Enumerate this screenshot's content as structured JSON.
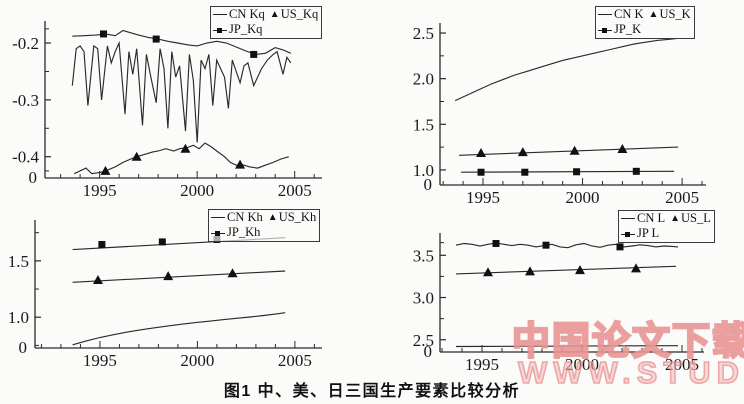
{
  "caption": "图1 中、美、日三国生产要素比较分析",
  "watermark": {
    "line1": "中国论文下载",
    "line2": "WWW.STUDA.",
    "color": "#e79090"
  },
  "colors": {
    "line": "#2a2a2a",
    "marker": "#111111",
    "text": "#1a1a1a"
  },
  "chart_data": [
    {
      "type": "line",
      "name": "Kq",
      "legend": [
        {
          "label": "CN Kq",
          "marker": "line"
        },
        {
          "label": "US_Kq",
          "marker": "triangle"
        },
        {
          "label": "JP_Kq",
          "marker": "square-line"
        }
      ],
      "legend_position": "top-right",
      "xticks": [
        {
          "v": 1995,
          "label": "1995"
        },
        {
          "v": 2000,
          "label": "2000"
        },
        {
          "v": 2005,
          "label": "2005"
        }
      ],
      "yticks": [
        {
          "v": -0.2,
          "label": "-0.2"
        },
        {
          "v": -0.3,
          "label": "-0.3"
        },
        {
          "v": -0.4,
          "label": "-0.4"
        }
      ],
      "yminor": [
        -0.175,
        -0.25,
        -0.35,
        -0.425
      ],
      "origin_label": "0",
      "xlim": [
        1992.2,
        2006.4
      ],
      "ylim": [
        -0.4375,
        -0.17
      ],
      "series": [
        {
          "name": "CN_Kq",
          "marker": null,
          "x": [
            1993.6,
            1993.8,
            1994.0,
            1994.2,
            1994.4,
            1994.7,
            1994.9,
            1995.1,
            1995.4,
            1995.6,
            1995.8,
            1996.0,
            1996.3,
            1996.5,
            1996.7,
            1996.9,
            1997.2,
            1997.4,
            1997.6,
            1997.9,
            1998.1,
            1998.3,
            1998.5,
            1998.7,
            1998.9,
            1999.1,
            1999.4,
            1999.6,
            1999.8,
            2000.0,
            2000.2,
            2000.4,
            2000.6,
            2000.8,
            2001.0,
            2001.2,
            2001.4,
            2001.6,
            2001.8,
            2002.0,
            2002.2,
            2002.4,
            2002.6,
            2002.9,
            2003.3,
            2003.6,
            2003.9,
            2004.1,
            2004.4,
            2004.6,
            2004.8
          ],
          "y": [
            -0.275,
            -0.21,
            -0.205,
            -0.215,
            -0.31,
            -0.205,
            -0.21,
            -0.3,
            -0.205,
            -0.235,
            -0.215,
            -0.2,
            -0.325,
            -0.215,
            -0.255,
            -0.21,
            -0.345,
            -0.22,
            -0.255,
            -0.305,
            -0.21,
            -0.245,
            -0.35,
            -0.215,
            -0.26,
            -0.24,
            -0.355,
            -0.22,
            -0.265,
            -0.375,
            -0.23,
            -0.245,
            -0.22,
            -0.31,
            -0.23,
            -0.245,
            -0.26,
            -0.315,
            -0.23,
            -0.25,
            -0.27,
            -0.24,
            -0.235,
            -0.275,
            -0.245,
            -0.23,
            -0.22,
            -0.215,
            -0.255,
            -0.225,
            -0.235
          ]
        },
        {
          "name": "US_Kq",
          "marker": "triangle",
          "x": [
            1993.7,
            1994.0,
            1994.3,
            1994.6,
            1995.0,
            1995.3,
            1995.8,
            1996.2,
            1996.6,
            1996.9,
            1997.3,
            1997.7,
            1998.0,
            1998.4,
            1998.8,
            1999.1,
            1999.5,
            1999.8,
            2000.1,
            2000.4,
            2000.7,
            2001.0,
            2001.4,
            2001.7,
            2002.0,
            2002.3,
            2002.7,
            2003.1,
            2003.5,
            2003.9,
            2004.3,
            2004.7
          ],
          "y": [
            -0.43,
            -0.425,
            -0.42,
            -0.43,
            -0.428,
            -0.425,
            -0.418,
            -0.41,
            -0.404,
            -0.4,
            -0.396,
            -0.392,
            -0.39,
            -0.386,
            -0.39,
            -0.386,
            -0.384,
            -0.38,
            -0.386,
            -0.376,
            -0.382,
            -0.39,
            -0.4,
            -0.41,
            -0.415,
            -0.414,
            -0.418,
            -0.42,
            -0.415,
            -0.41,
            -0.404,
            -0.4
          ],
          "marker_points": [
            [
              1995.3,
              -0.425
            ],
            [
              1996.9,
              -0.4
            ],
            [
              1999.4,
              -0.386
            ],
            [
              2002.2,
              -0.414
            ]
          ]
        },
        {
          "name": "JP_Kq",
          "marker": "square",
          "x": [
            1993.6,
            1994.2,
            1994.8,
            1995.3,
            1995.8,
            1996.2,
            1996.6,
            1997.0,
            1997.5,
            1998.0,
            1998.5,
            1999.0,
            1999.5,
            2000.0,
            2000.5,
            2001.0,
            2001.5,
            2002.0,
            2002.5,
            2003.0,
            2003.5,
            2004.0,
            2004.4,
            2004.8
          ],
          "y": [
            -0.188,
            -0.187,
            -0.186,
            -0.184,
            -0.187,
            -0.178,
            -0.182,
            -0.186,
            -0.19,
            -0.193,
            -0.197,
            -0.2,
            -0.203,
            -0.205,
            -0.2,
            -0.197,
            -0.2,
            -0.207,
            -0.214,
            -0.22,
            -0.218,
            -0.208,
            -0.212,
            -0.218
          ],
          "marker_points": [
            [
              1995.2,
              -0.184
            ],
            [
              1997.9,
              -0.193
            ],
            [
              2002.9,
              -0.22
            ]
          ]
        }
      ]
    },
    {
      "type": "line",
      "name": "K",
      "legend": [
        {
          "label": "CN K",
          "marker": "line"
        },
        {
          "label": "US_K",
          "marker": "triangle"
        },
        {
          "label": "JP_K",
          "marker": "square-line"
        }
      ],
      "legend_position": "top-right",
      "xticks": [
        {
          "v": 1995,
          "label": "1995"
        },
        {
          "v": 2000,
          "label": "2000"
        },
        {
          "v": 2005,
          "label": "2005"
        }
      ],
      "yticks": [
        {
          "v": 2.5,
          "label": "2.5"
        },
        {
          "v": 2.0,
          "label": "2.0"
        },
        {
          "v": 1.5,
          "label": "1.5"
        },
        {
          "v": 1.0,
          "label": "1.0"
        }
      ],
      "yminor": [
        1.25,
        1.75,
        2.25
      ],
      "origin_label": "0",
      "xlim": [
        1992.84,
        2006.2
      ],
      "ylim": [
        0.835,
        2.555
      ],
      "series": [
        {
          "name": "CN_K",
          "marker": null,
          "x": [
            1993.6,
            1994.2,
            1994.8,
            1995.4,
            1996.0,
            1996.6,
            1997.2,
            1997.8,
            1998.4,
            1999.0,
            1999.6,
            2000.2,
            2000.8,
            2001.4,
            2002.0,
            2002.6,
            2003.2,
            2003.8,
            2004.3,
            2004.7
          ],
          "y": [
            1.76,
            1.82,
            1.88,
            1.94,
            1.99,
            2.04,
            2.08,
            2.12,
            2.16,
            2.2,
            2.23,
            2.26,
            2.29,
            2.32,
            2.35,
            2.38,
            2.4,
            2.42,
            2.43,
            2.44
          ]
        },
        {
          "name": "US_K",
          "marker": "triangle",
          "x": [
            1993.8,
            2004.8
          ],
          "y": [
            1.16,
            1.25
          ],
          "marker_points": [
            [
              1994.9,
              1.185
            ],
            [
              1997.0,
              1.195
            ],
            [
              1999.6,
              1.21
            ],
            [
              2002.0,
              1.23
            ]
          ]
        },
        {
          "name": "JP_K",
          "marker": "square",
          "x": [
            1993.9,
            2004.6
          ],
          "y": [
            0.975,
            0.985
          ],
          "marker_points": [
            [
              1994.9,
              0.975
            ],
            [
              1997.1,
              0.975
            ],
            [
              1999.7,
              0.98
            ],
            [
              2002.7,
              0.985
            ]
          ]
        }
      ]
    },
    {
      "type": "line",
      "name": "Kh",
      "legend": [
        {
          "label": "CN Kh",
          "marker": "line"
        },
        {
          "label": "US_Kh",
          "marker": "triangle"
        },
        {
          "label": "JP_Kh",
          "marker": "square-line"
        }
      ],
      "legend_position": "top-right",
      "xticks": [
        {
          "v": 1995,
          "label": "1995"
        },
        {
          "v": 2000,
          "label": "2000"
        },
        {
          "v": 2005,
          "label": "2005"
        }
      ],
      "yticks": [
        {
          "v": 1.5,
          "label": "1.5"
        },
        {
          "v": 1.0,
          "label": "1.0"
        }
      ],
      "yminor": [
        0.75,
        1.25,
        1.75
      ],
      "origin_label": "0",
      "xlim": [
        1991.67,
        2006.39
      ],
      "ylim": [
        0.727,
        1.818
      ],
      "series": [
        {
          "name": "JP_Kh",
          "marker": "square",
          "x": [
            1993.6,
            2004.5
          ],
          "y": [
            1.6,
            1.705
          ],
          "marker_points": [
            [
              1995.1,
              1.645
            ],
            [
              1998.2,
              1.668
            ],
            [
              2001.0,
              1.69
            ]
          ]
        },
        {
          "name": "US_Kh",
          "marker": "triangle",
          "x": [
            1993.6,
            2004.5
          ],
          "y": [
            1.31,
            1.41
          ],
          "marker_points": [
            [
              1994.9,
              1.33
            ],
            [
              1998.5,
              1.365
            ],
            [
              2001.8,
              1.39
            ]
          ]
        },
        {
          "name": "CN_Kh",
          "marker": null,
          "x": [
            1993.6,
            1994.3,
            1995.0,
            1995.7,
            1996.4,
            1997.1,
            1997.8,
            1998.5,
            1999.2,
            1999.9,
            2000.6,
            2001.3,
            2002.0,
            2002.7,
            2003.4,
            2004.1,
            2004.5
          ],
          "y": [
            0.755,
            0.79,
            0.82,
            0.845,
            0.868,
            0.888,
            0.906,
            0.923,
            0.938,
            0.952,
            0.965,
            0.978,
            0.99,
            1.002,
            1.015,
            1.03,
            1.04
          ]
        }
      ]
    },
    {
      "type": "line",
      "name": "L",
      "legend": [
        {
          "label": "CN L",
          "marker": "line"
        },
        {
          "label": "US_L",
          "marker": "triangle"
        },
        {
          "label": "JP L",
          "marker": "square-line"
        }
      ],
      "legend_position": "top-right",
      "xticks": [
        {
          "v": 1995,
          "label": "1995"
        },
        {
          "v": 2000,
          "label": "2000"
        },
        {
          "v": 2005,
          "label": "2005"
        }
      ],
      "yticks": [
        {
          "v": 3.5,
          "label": "3.5"
        },
        {
          "v": 3.0,
          "label": "3.0"
        },
        {
          "v": 2.5,
          "label": "2.5"
        }
      ],
      "yminor": [
        2.75,
        3.25,
        3.65
      ],
      "origin_label": "0",
      "xlim": [
        1992.9,
        2006.1
      ],
      "ylim": [
        2.355,
        3.705
      ],
      "series": [
        {
          "name": "JP_L",
          "marker": "square",
          "x": [
            1993.7,
            1994.1,
            1994.5,
            1994.9,
            1995.3,
            1995.7,
            1996.1,
            1996.5,
            1996.9,
            1997.3,
            1997.7,
            1998.1,
            1998.5,
            1998.9,
            1999.3,
            1999.7,
            2000.1,
            2000.5,
            2000.9,
            2001.3,
            2001.7,
            2002.1,
            2002.5,
            2002.9,
            2003.3,
            2003.7,
            2004.1,
            2004.5,
            2004.8
          ],
          "y": [
            3.62,
            3.64,
            3.63,
            3.61,
            3.63,
            3.645,
            3.63,
            3.615,
            3.63,
            3.62,
            3.6,
            3.615,
            3.63,
            3.6,
            3.59,
            3.625,
            3.64,
            3.61,
            3.595,
            3.62,
            3.63,
            3.6,
            3.61,
            3.625,
            3.615,
            3.6,
            3.61,
            3.605,
            3.6
          ],
          "marker_points": [
            [
              1995.7,
              3.64
            ],
            [
              1998.2,
              3.62
            ],
            [
              2001.9,
              3.6
            ]
          ]
        },
        {
          "name": "US_L",
          "marker": "triangle",
          "x": [
            1993.7,
            2004.7
          ],
          "y": [
            3.28,
            3.37
          ],
          "marker_points": [
            [
              1995.3,
              3.3
            ],
            [
              1997.4,
              3.31
            ],
            [
              1999.9,
              3.325
            ],
            [
              2002.7,
              3.345
            ]
          ]
        },
        {
          "name": "CN_L",
          "marker": null,
          "x": [
            1993.7,
            2004.8
          ],
          "y": [
            2.42,
            2.43
          ]
        }
      ]
    }
  ]
}
